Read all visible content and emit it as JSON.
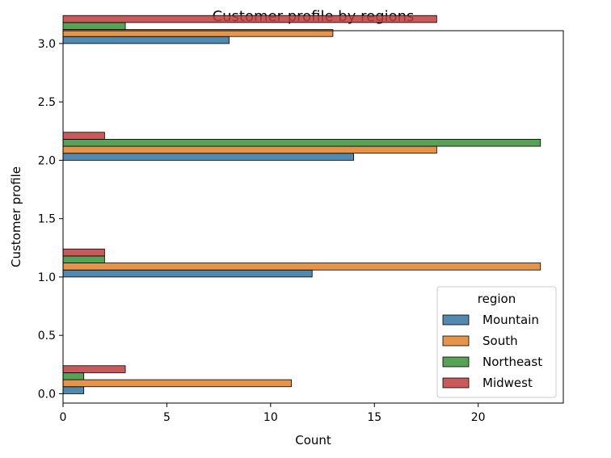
{
  "chart_data": {
    "type": "bar",
    "orientation": "horizontal",
    "title": "Customer profile by regions",
    "xlabel": "Count",
    "ylabel": "Customer profile",
    "xlim": [
      0,
      24.1
    ],
    "ylim": [
      -0.08,
      3.11
    ],
    "xticks": [
      0,
      5,
      10,
      15,
      20
    ],
    "yticks": [
      0.0,
      0.5,
      1.0,
      1.5,
      2.0,
      2.5,
      3.0
    ],
    "xtick_labels": [
      "0",
      "5",
      "10",
      "15",
      "20"
    ],
    "ytick_labels": [
      "0.0",
      "0.5",
      "1.0",
      "1.5",
      "2.0",
      "2.5",
      "3.0"
    ],
    "categories": [
      0,
      1,
      2,
      3
    ],
    "grid": false,
    "legend": {
      "title": "region",
      "placement": "lower-right"
    },
    "series": [
      {
        "name": "Mountain",
        "color": "#3274a1",
        "values": [
          1,
          12,
          14,
          8
        ]
      },
      {
        "name": "South",
        "color": "#e1812c",
        "values": [
          11,
          23,
          18,
          13
        ]
      },
      {
        "name": "Northeast",
        "color": "#3a923a",
        "values": [
          1,
          2,
          23,
          3
        ]
      },
      {
        "name": "Midwest",
        "color": "#c03d3e",
        "values": [
          3,
          2,
          2,
          18
        ]
      }
    ]
  }
}
